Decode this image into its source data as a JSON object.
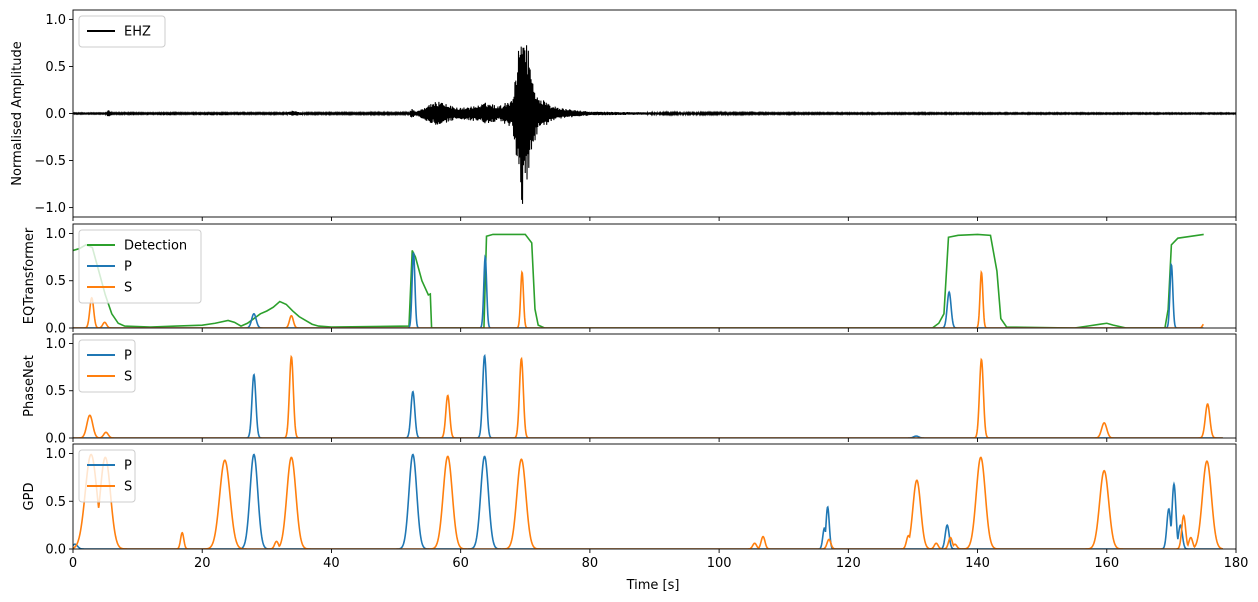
{
  "chart_data": {
    "type": "line",
    "shared_x": {
      "label": "Time [s]",
      "range": [
        0,
        180
      ],
      "ticks": [
        0,
        20,
        40,
        60,
        80,
        100,
        120,
        140,
        160,
        180
      ],
      "tick_labels": [
        "0",
        "20",
        "40",
        "60",
        "80",
        "100",
        "120",
        "140",
        "160",
        "180"
      ]
    },
    "panels": [
      {
        "id": "waveform",
        "ylabel": "Normalised Amplitude",
        "ylim": [
          -1.1,
          1.1
        ],
        "yticks": [
          -1.0,
          -0.5,
          0.0,
          0.5,
          1.0
        ],
        "ytick_labels": [
          "−1.0",
          "−0.5",
          "0.0",
          "0.5",
          "1.0"
        ],
        "legend": {
          "placement": "top-left",
          "entries": [
            "EHZ"
          ]
        },
        "series": [
          {
            "name": "EHZ",
            "color": "#000000",
            "kind": "waveform",
            "envelope": [
              [
                0,
                0.006
              ],
              [
                5,
                0.006
              ],
              [
                5.5,
                0.04
              ],
              [
                6,
                0.008
              ],
              [
                33,
                0.008
              ],
              [
                34,
                0.03
              ],
              [
                36,
                0.008
              ],
              [
                52,
                0.01
              ],
              [
                52.5,
                0.06
              ],
              [
                53,
                0.02
              ],
              [
                56,
                0.12
              ],
              [
                57,
                0.15
              ],
              [
                58,
                0.09
              ],
              [
                60,
                0.06
              ],
              [
                63,
                0.09
              ],
              [
                64,
                0.12
              ],
              [
                65,
                0.1
              ],
              [
                66,
                0.08
              ],
              [
                68,
                0.16
              ],
              [
                69,
                0.7
              ],
              [
                69.5,
                1.0
              ],
              [
                70.5,
                0.7
              ],
              [
                71,
                0.4
              ],
              [
                72,
                0.18
              ],
              [
                74,
                0.09
              ],
              [
                76,
                0.05
              ],
              [
                80,
                0.02
              ],
              [
                90,
                0.012
              ],
              [
                110,
                0.008
              ],
              [
                180,
                0.006
              ]
            ]
          }
        ]
      },
      {
        "id": "eqtransformer",
        "ylabel": "EQTransformer",
        "ylim": [
          0,
          1.1
        ],
        "yticks": [
          0.0,
          0.5,
          1.0
        ],
        "ytick_labels": [
          "0.0",
          "0.5",
          "1.0"
        ],
        "legend": {
          "placement": "top-left",
          "entries": [
            "Detection",
            "P",
            "S"
          ]
        },
        "series": [
          {
            "name": "Detection",
            "color": "#2ca02c",
            "points": [
              [
                0,
                0.82
              ],
              [
                1,
                0.84
              ],
              [
                2,
                0.88
              ],
              [
                3,
                0.85
              ],
              [
                4,
                0.6
              ],
              [
                5,
                0.35
              ],
              [
                6,
                0.15
              ],
              [
                7,
                0.05
              ],
              [
                8,
                0.02
              ],
              [
                12,
                0.01
              ],
              [
                16,
                0.02
              ],
              [
                20,
                0.03
              ],
              [
                22,
                0.05
              ],
              [
                24,
                0.08
              ],
              [
                25,
                0.06
              ],
              [
                26,
                0.02
              ],
              [
                27,
                0.05
              ],
              [
                28,
                0.1
              ],
              [
                29,
                0.15
              ],
              [
                30,
                0.18
              ],
              [
                31,
                0.22
              ],
              [
                32,
                0.28
              ],
              [
                33,
                0.25
              ],
              [
                34,
                0.18
              ],
              [
                35,
                0.12
              ],
              [
                36,
                0.08
              ],
              [
                37,
                0.04
              ],
              [
                38,
                0.02
              ],
              [
                40,
                0.01
              ],
              [
                52,
                0.02
              ],
              [
                52.5,
                0.82
              ],
              [
                53,
                0.75
              ],
              [
                54,
                0.5
              ],
              [
                55,
                0.35
              ],
              [
                55.3,
                0.36
              ],
              [
                55.5,
                0.0
              ],
              [
                63.6,
                0.0
              ],
              [
                64,
                0.97
              ],
              [
                65,
                0.99
              ],
              [
                70,
                0.99
              ],
              [
                71,
                0.9
              ],
              [
                71.5,
                0.2
              ],
              [
                72,
                0.03
              ],
              [
                73,
                0.0
              ],
              [
                133,
                0.0
              ],
              [
                134,
                0.05
              ],
              [
                134.8,
                0.15
              ],
              [
                135.5,
                0.96
              ],
              [
                137,
                0.98
              ],
              [
                140,
                0.99
              ],
              [
                142,
                0.98
              ],
              [
                143,
                0.6
              ],
              [
                143.6,
                0.1
              ],
              [
                144.5,
                0.01
              ],
              [
                155,
                0.0
              ],
              [
                157,
                0.02
              ],
              [
                159,
                0.04
              ],
              [
                160,
                0.05
              ],
              [
                161,
                0.03
              ],
              [
                163,
                0.0
              ],
              [
                169,
                0.0
              ],
              [
                169.5,
                0.2
              ],
              [
                170,
                0.88
              ],
              [
                171,
                0.95
              ],
              [
                173,
                0.97
              ],
              [
                175,
                0.99
              ]
            ]
          },
          {
            "name": "P",
            "color": "#1f77b4",
            "peaks": [
              {
                "t": 28.0,
                "amp": 0.15,
                "w": 0.35
              },
              {
                "t": 52.7,
                "amp": 0.8,
                "w": 0.22
              },
              {
                "t": 63.8,
                "amp": 0.75,
                "w": 0.22
              },
              {
                "t": 135.6,
                "amp": 0.38,
                "w": 0.3
              },
              {
                "t": 170.0,
                "amp": 0.67,
                "w": 0.22
              }
            ],
            "t_end": 175
          },
          {
            "name": "S",
            "color": "#ff7f0e",
            "peaks": [
              {
                "t": 2.9,
                "amp": 0.32,
                "w": 0.3
              },
              {
                "t": 4.9,
                "amp": 0.06,
                "w": 0.3
              },
              {
                "t": 33.8,
                "amp": 0.13,
                "w": 0.3
              },
              {
                "t": 69.5,
                "amp": 0.59,
                "w": 0.22
              },
              {
                "t": 140.6,
                "amp": 0.59,
                "w": 0.22
              },
              {
                "t": 175.0,
                "amp": 0.04,
                "w": 0.2
              }
            ],
            "t_end": 175
          }
        ]
      },
      {
        "id": "phasenet",
        "ylabel": "PhaseNet",
        "ylim": [
          0,
          1.1
        ],
        "yticks": [
          0.0,
          0.5,
          1.0
        ],
        "ytick_labels": [
          "0.0",
          "0.5",
          "1.0"
        ],
        "legend": {
          "placement": "top-left",
          "entries": [
            "P",
            "S"
          ]
        },
        "series": [
          {
            "name": "P",
            "color": "#1f77b4",
            "peaks": [
              {
                "t": 28.0,
                "amp": 0.67,
                "w": 0.3
              },
              {
                "t": 52.6,
                "amp": 0.49,
                "w": 0.3
              },
              {
                "t": 63.7,
                "amp": 0.87,
                "w": 0.3
              },
              {
                "t": 130.5,
                "amp": 0.02,
                "w": 0.4
              }
            ],
            "t_end": 178
          },
          {
            "name": "S",
            "color": "#ff7f0e",
            "peaks": [
              {
                "t": 2.6,
                "amp": 0.24,
                "w": 0.45
              },
              {
                "t": 5.1,
                "amp": 0.06,
                "w": 0.35
              },
              {
                "t": 33.8,
                "amp": 0.86,
                "w": 0.3
              },
              {
                "t": 58.0,
                "amp": 0.45,
                "w": 0.3
              },
              {
                "t": 69.4,
                "amp": 0.84,
                "w": 0.3
              },
              {
                "t": 140.6,
                "amp": 0.83,
                "w": 0.3
              },
              {
                "t": 159.6,
                "amp": 0.16,
                "w": 0.4
              },
              {
                "t": 175.6,
                "amp": 0.36,
                "w": 0.35
              }
            ],
            "t_end": 178
          }
        ]
      },
      {
        "id": "gpd",
        "ylabel": "GPD",
        "ylim": [
          0,
          1.1
        ],
        "yticks": [
          0.0,
          0.5,
          1.0
        ],
        "ytick_labels": [
          "0.0",
          "0.5",
          "1.0"
        ],
        "legend": {
          "placement": "top-left",
          "entries": [
            "P",
            "S"
          ]
        },
        "series": [
          {
            "name": "P",
            "color": "#1f77b4",
            "peaks": [
              {
                "t": 0.3,
                "amp": 0.05,
                "w": 0.4
              },
              {
                "t": 28.0,
                "amp": 0.99,
                "w": 0.6
              },
              {
                "t": 52.6,
                "amp": 0.99,
                "w": 0.6
              },
              {
                "t": 63.7,
                "amp": 0.97,
                "w": 0.6
              },
              {
                "t": 116.8,
                "amp": 0.44,
                "w": 0.25
              },
              {
                "t": 116.3,
                "amp": 0.22,
                "w": 0.25
              },
              {
                "t": 135.3,
                "amp": 0.25,
                "w": 0.3
              },
              {
                "t": 169.6,
                "amp": 0.42,
                "w": 0.3
              },
              {
                "t": 170.4,
                "amp": 0.68,
                "w": 0.3
              },
              {
                "t": 171.4,
                "amp": 0.25,
                "w": 0.3
              }
            ],
            "t_end": 178
          },
          {
            "name": "S",
            "color": "#ff7f0e",
            "peaks": [
              {
                "t": 2.8,
                "amp": 0.99,
                "w": 0.9
              },
              {
                "t": 5.0,
                "amp": 0.96,
                "w": 0.8
              },
              {
                "t": 16.9,
                "amp": 0.17,
                "w": 0.25
              },
              {
                "t": 23.5,
                "amp": 0.93,
                "w": 0.8
              },
              {
                "t": 31.5,
                "amp": 0.08,
                "w": 0.3
              },
              {
                "t": 33.8,
                "amp": 0.96,
                "w": 0.7
              },
              {
                "t": 58.0,
                "amp": 0.97,
                "w": 0.7
              },
              {
                "t": 69.4,
                "amp": 0.94,
                "w": 0.7
              },
              {
                "t": 105.5,
                "amp": 0.06,
                "w": 0.3
              },
              {
                "t": 106.8,
                "amp": 0.13,
                "w": 0.3
              },
              {
                "t": 117.0,
                "amp": 0.1,
                "w": 0.3
              },
              {
                "t": 129.3,
                "amp": 0.14,
                "w": 0.3
              },
              {
                "t": 130.6,
                "amp": 0.72,
                "w": 0.6
              },
              {
                "t": 133.6,
                "amp": 0.06,
                "w": 0.3
              },
              {
                "t": 135.8,
                "amp": 0.12,
                "w": 0.3
              },
              {
                "t": 136.5,
                "amp": 0.05,
                "w": 0.3
              },
              {
                "t": 140.5,
                "amp": 0.96,
                "w": 0.7
              },
              {
                "t": 159.6,
                "amp": 0.82,
                "w": 0.7
              },
              {
                "t": 171.9,
                "amp": 0.35,
                "w": 0.3
              },
              {
                "t": 173.0,
                "amp": 0.12,
                "w": 0.3
              },
              {
                "t": 175.5,
                "amp": 0.92,
                "w": 0.7
              }
            ],
            "t_end": 178
          }
        ]
      }
    ]
  }
}
